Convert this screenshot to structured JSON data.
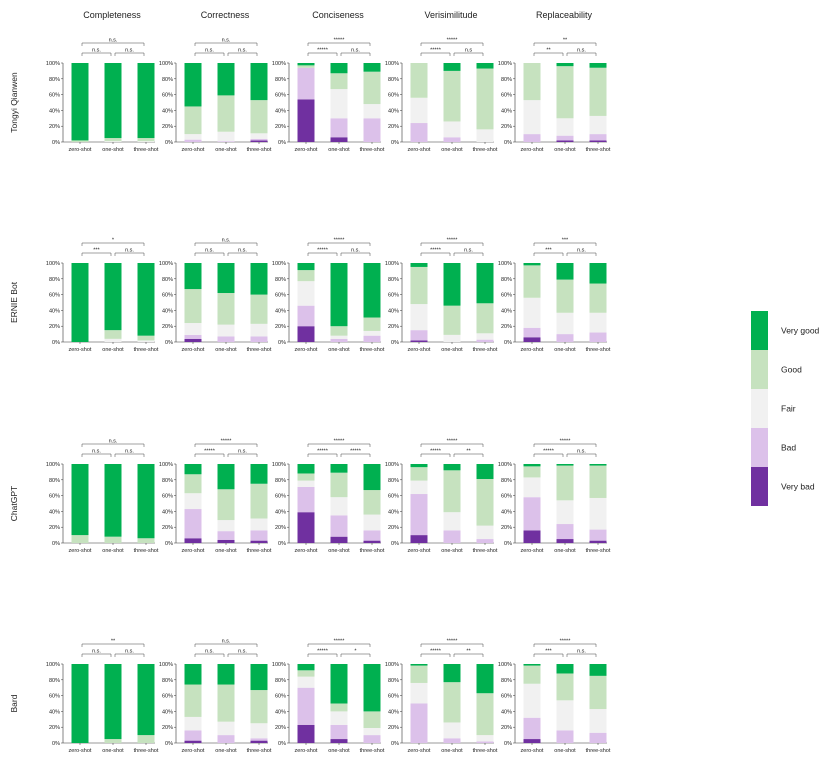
{
  "categories": [
    "Very bad",
    "Bad",
    "Fair",
    "Good",
    "Very good"
  ],
  "colors": {
    "Very bad": "#7030a0",
    "Bad": "#dcc1ea",
    "Fair": "#f1f1f1",
    "Good": "#c6e2bf",
    "Very good": "#00b050"
  },
  "columns": [
    "Completeness",
    "Correctness",
    "Conciseness",
    "Verisimilitude",
    "Replaceability"
  ],
  "rows": [
    "Tongyi Qianwen",
    "ERNIE Bot",
    "ChatGPT",
    "Bard"
  ],
  "xcategories": [
    "zero-shot",
    "one-shot",
    "three-shot"
  ],
  "yticks": [
    "0%",
    "20%",
    "40%",
    "60%",
    "80%",
    "100%"
  ],
  "chart_data": {
    "type": "bar",
    "stacked": true,
    "normalized": true,
    "ylim": [
      0,
      100
    ],
    "legend": "right",
    "panels": [
      {
        "row": "Tongyi Qianwen",
        "column": "Completeness",
        "sig": [
          "n.s.",
          "n.s.",
          "n.s."
        ],
        "bars": [
          [
            0,
            0,
            0,
            2,
            98
          ],
          [
            0,
            0,
            1,
            4,
            95
          ],
          [
            0,
            0,
            1,
            4,
            95
          ]
        ]
      },
      {
        "row": "Tongyi Qianwen",
        "column": "Correctness",
        "sig": [
          "n.s.",
          "n.s.",
          "n.s."
        ],
        "bars": [
          [
            0,
            3,
            7,
            35,
            55
          ],
          [
            0,
            1,
            12,
            46,
            41
          ],
          [
            2,
            2,
            7,
            42,
            47
          ]
        ]
      },
      {
        "row": "Tongyi Qianwen",
        "column": "Conciseness",
        "sig": [
          "*****",
          "n.s.",
          "*****"
        ],
        "bars": [
          [
            54,
            40,
            0,
            3,
            3
          ],
          [
            6,
            24,
            37,
            20,
            13
          ],
          [
            0,
            30,
            18,
            41,
            11
          ]
        ]
      },
      {
        "row": "Tongyi Qianwen",
        "column": "Verisimilitude",
        "sig": [
          "*****",
          "n.s",
          "*****"
        ],
        "bars": [
          [
            0,
            24,
            32,
            44,
            0
          ],
          [
            0,
            6,
            20,
            64,
            10
          ],
          [
            0,
            0,
            16,
            77,
            7
          ]
        ]
      },
      {
        "row": "Tongyi Qianwen",
        "column": "Replaceability",
        "sig": [
          "**",
          "n.s.",
          "**"
        ],
        "bars": [
          [
            0,
            10,
            43,
            47,
            0
          ],
          [
            2,
            6,
            22,
            66,
            4
          ],
          [
            2,
            8,
            23,
            61,
            6
          ]
        ]
      },
      {
        "row": "ERNIE Bot",
        "column": "Completeness",
        "sig": [
          "***",
          "n.s.",
          "*"
        ],
        "bars": [
          [
            0,
            0,
            0,
            0,
            100
          ],
          [
            0,
            0,
            4,
            11,
            85
          ],
          [
            0,
            0,
            2,
            6,
            92
          ]
        ]
      },
      {
        "row": "ERNIE Bot",
        "column": "Correctness",
        "sig": [
          "n.s.",
          "n.s.",
          "n.s."
        ],
        "bars": [
          [
            4,
            5,
            15,
            43,
            33
          ],
          [
            0,
            7,
            15,
            40,
            38
          ],
          [
            0,
            7,
            16,
            37,
            40
          ]
        ]
      },
      {
        "row": "ERNIE Bot",
        "column": "Conciseness",
        "sig": [
          "*****",
          "n.s.",
          "*****"
        ],
        "bars": [
          [
            20,
            26,
            31,
            14,
            9
          ],
          [
            0,
            4,
            4,
            12,
            80
          ],
          [
            0,
            8,
            6,
            17,
            69
          ]
        ]
      },
      {
        "row": "ERNIE Bot",
        "column": "Verisimilitude",
        "sig": [
          "*****",
          "n.s.",
          "*****"
        ],
        "bars": [
          [
            2,
            13,
            33,
            47,
            5
          ],
          [
            0,
            0,
            9,
            37,
            54
          ],
          [
            0,
            3,
            8,
            38,
            51
          ]
        ]
      },
      {
        "row": "ERNIE Bot",
        "column": "Replaceability",
        "sig": [
          "***",
          "n.s.",
          "***"
        ],
        "bars": [
          [
            6,
            12,
            38,
            41,
            3
          ],
          [
            0,
            10,
            27,
            42,
            21
          ],
          [
            0,
            12,
            25,
            37,
            26
          ]
        ]
      },
      {
        "row": "ChatGPT",
        "column": "Completeness",
        "sig": [
          "n.s.",
          "n.s.",
          "n.s."
        ],
        "bars": [
          [
            0,
            0,
            0,
            10,
            90
          ],
          [
            0,
            0,
            0,
            8,
            92
          ],
          [
            0,
            0,
            0,
            6,
            94
          ]
        ]
      },
      {
        "row": "ChatGPT",
        "column": "Correctness",
        "sig": [
          "*****",
          "n.s.",
          "*****"
        ],
        "bars": [
          [
            6,
            37,
            20,
            24,
            13
          ],
          [
            4,
            11,
            14,
            39,
            32
          ],
          [
            3,
            13,
            15,
            44,
            25
          ]
        ]
      },
      {
        "row": "ChatGPT",
        "column": "Conciseness",
        "sig": [
          "*****",
          "*****",
          "*****"
        ],
        "bars": [
          [
            39,
            32,
            8,
            9,
            12
          ],
          [
            8,
            27,
            23,
            31,
            11
          ],
          [
            3,
            13,
            20,
            31,
            33
          ]
        ]
      },
      {
        "row": "ChatGPT",
        "column": "Verisimilitude",
        "sig": [
          "*****",
          "**",
          "*****"
        ],
        "bars": [
          [
            10,
            52,
            17,
            17,
            4
          ],
          [
            0,
            16,
            23,
            53,
            8
          ],
          [
            0,
            5,
            17,
            59,
            19
          ]
        ]
      },
      {
        "row": "ChatGPT",
        "column": "Replaceability",
        "sig": [
          "*****",
          "n.s.",
          "*****"
        ],
        "bars": [
          [
            16,
            42,
            25,
            14,
            3
          ],
          [
            5,
            19,
            30,
            44,
            2
          ],
          [
            3,
            14,
            40,
            41,
            2
          ]
        ]
      },
      {
        "row": "Bard",
        "column": "Completeness",
        "sig": [
          "n.s.",
          "n.s.",
          "**"
        ],
        "bars": [
          [
            0,
            0,
            0,
            0,
            100
          ],
          [
            0,
            0,
            0,
            5,
            95
          ],
          [
            0,
            0,
            0,
            10,
            90
          ]
        ]
      },
      {
        "row": "Bard",
        "column": "Correctness",
        "sig": [
          "n.s.",
          "n.s.",
          "n.s."
        ],
        "bars": [
          [
            3,
            13,
            17,
            41,
            26
          ],
          [
            0,
            10,
            17,
            47,
            26
          ],
          [
            3,
            3,
            19,
            42,
            33
          ]
        ]
      },
      {
        "row": "Bard",
        "column": "Conciseness",
        "sig": [
          "*****",
          "*",
          "*****"
        ],
        "bars": [
          [
            23,
            47,
            14,
            8,
            8
          ],
          [
            5,
            18,
            17,
            10,
            50
          ],
          [
            0,
            10,
            9,
            21,
            60
          ]
        ]
      },
      {
        "row": "Bard",
        "column": "Verisimilitude",
        "sig": [
          "*****",
          "**",
          "*****"
        ],
        "bars": [
          [
            0,
            50,
            26,
            22,
            2
          ],
          [
            0,
            6,
            20,
            51,
            23
          ],
          [
            0,
            2,
            8,
            53,
            37
          ]
        ]
      },
      {
        "row": "Bard",
        "column": "Replaceability",
        "sig": [
          "***",
          "n.s.",
          "*****"
        ],
        "bars": [
          [
            5,
            27,
            43,
            23,
            2
          ],
          [
            0,
            16,
            38,
            34,
            12
          ],
          [
            0,
            13,
            30,
            42,
            15
          ]
        ]
      }
    ]
  }
}
